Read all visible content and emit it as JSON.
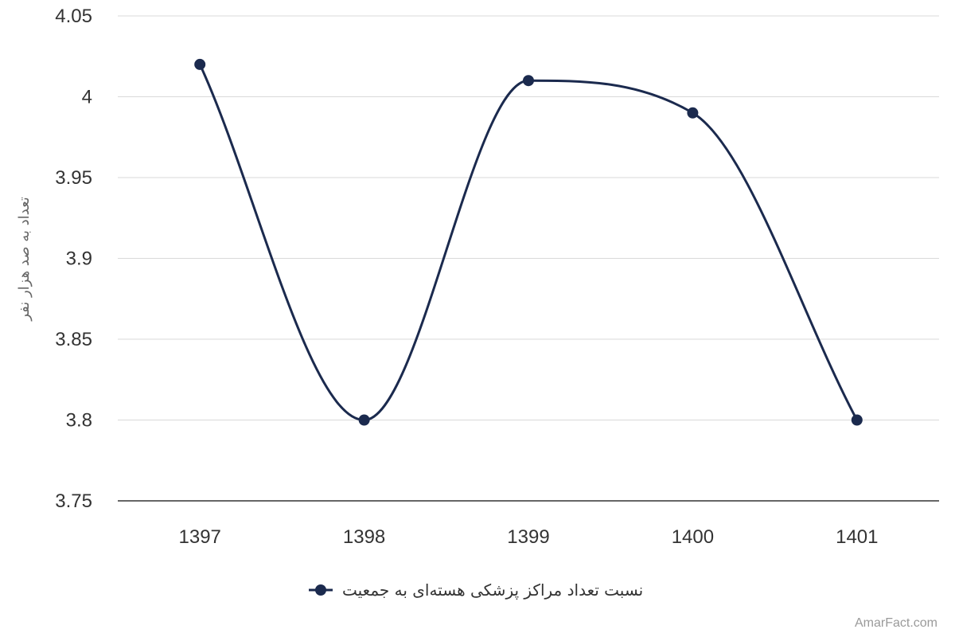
{
  "chart_data": {
    "type": "line",
    "categories": [
      "1397",
      "1398",
      "1399",
      "1400",
      "1401"
    ],
    "series": [
      {
        "name": "نسبت تعداد مراکز پزشکی هسته‌ای به جمعیت",
        "values": [
          4.02,
          3.8,
          4.01,
          3.99,
          3.8
        ],
        "color": "#1b2a4e"
      }
    ],
    "ylabel": "تعداد به صد هزار نفر",
    "ylim": [
      3.75,
      4.05
    ],
    "yticks": [
      "3.75",
      "3.8",
      "3.85",
      "3.9",
      "3.95",
      "4",
      "4.05"
    ],
    "grid": true,
    "legend_position": "bottom-center"
  },
  "watermark": "AmarFact.com"
}
